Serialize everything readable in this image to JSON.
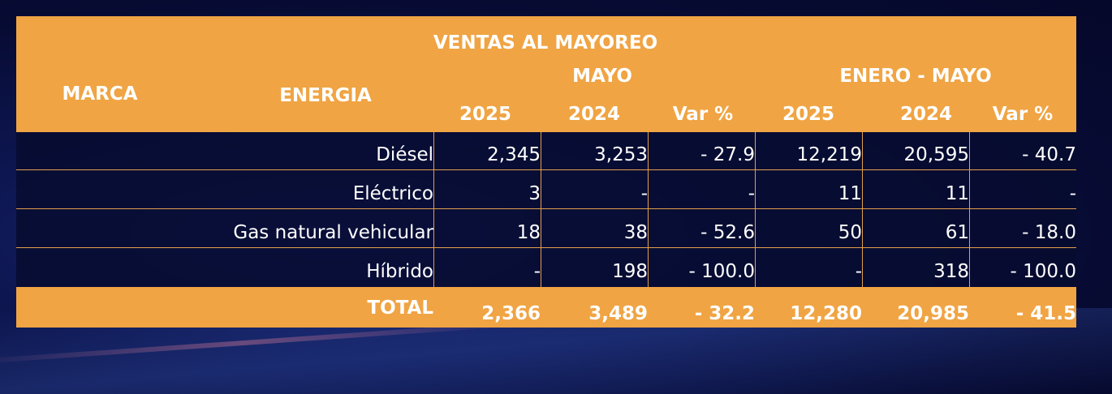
{
  "chart_data": {
    "type": "table",
    "title": "VENTAS AL MAYOREO",
    "headers": {
      "marca": "MARCA",
      "energia": "ENERGIA",
      "group1": "MAYO",
      "group2": "ENERO - MAYO",
      "col_2025": "2025",
      "col_2024": "2024",
      "col_var": "Var %"
    },
    "rows": [
      {
        "energia": "Diésel",
        "mayo_2025": "2,345",
        "mayo_2024": "3,253",
        "mayo_var": "- 27.9",
        "ene_2025": "12,219",
        "ene_2024": "20,595",
        "ene_var": "- 40.7"
      },
      {
        "energia": "Eléctrico",
        "mayo_2025": "3",
        "mayo_2024": "-",
        "mayo_var": "-",
        "ene_2025": "11",
        "ene_2024": "11",
        "ene_var": "-"
      },
      {
        "energia": "Gas natural vehicular",
        "mayo_2025": "18",
        "mayo_2024": "38",
        "mayo_var": "- 52.6",
        "ene_2025": "50",
        "ene_2024": "61",
        "ene_var": "- 18.0"
      },
      {
        "energia": "Híbrido",
        "mayo_2025": "-",
        "mayo_2024": "198",
        "mayo_var": "- 100.0",
        "ene_2025": "-",
        "ene_2024": "318",
        "ene_var": "- 100.0"
      }
    ],
    "total": {
      "label": "TOTAL",
      "mayo_2025": "2,366",
      "mayo_2024": "3,489",
      "mayo_var": "- 32.2",
      "ene_2025": "12,280",
      "ene_2024": "20,985",
      "ene_var": "- 41.5"
    }
  },
  "colors": {
    "header_bg": "#f0a443",
    "body_bg": "#070b30",
    "text": "#ffffff"
  }
}
